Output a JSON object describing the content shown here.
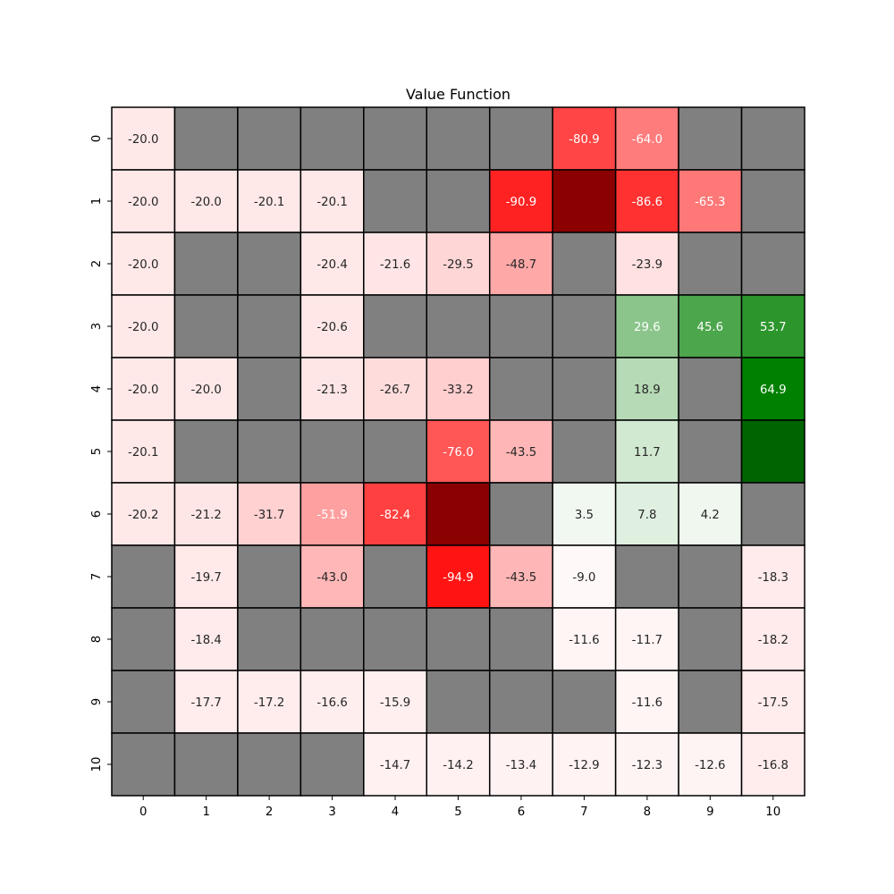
{
  "chart_data": {
    "type": "heatmap",
    "title": "Value Function",
    "xlabel": "",
    "ylabel": "",
    "x_tick_labels": [
      "0",
      "1",
      "2",
      "3",
      "4",
      "5",
      "6",
      "7",
      "8",
      "9",
      "10"
    ],
    "y_tick_labels": [
      "0",
      "1",
      "2",
      "3",
      "4",
      "5",
      "6",
      "7",
      "8",
      "9",
      "10"
    ],
    "grid": true,
    "colors": {
      "wall": "#808080",
      "goal": "#006400",
      "pit": "#8b0000",
      "cell_border": "#000000"
    },
    "cell_types": [
      [
        "v",
        "w",
        "w",
        "w",
        "w",
        "w",
        "w",
        "v",
        "v",
        "w",
        "w"
      ],
      [
        "v",
        "v",
        "v",
        "v",
        "w",
        "w",
        "v",
        "pit",
        "v",
        "v",
        "w"
      ],
      [
        "v",
        "w",
        "w",
        "v",
        "v",
        "v",
        "v",
        "w",
        "v",
        "w",
        "w"
      ],
      [
        "v",
        "w",
        "w",
        "v",
        "w",
        "w",
        "w",
        "w",
        "v",
        "v",
        "v"
      ],
      [
        "v",
        "v",
        "w",
        "v",
        "v",
        "v",
        "w",
        "w",
        "v",
        "w",
        "v"
      ],
      [
        "v",
        "w",
        "w",
        "w",
        "w",
        "v",
        "v",
        "w",
        "v",
        "w",
        "goal"
      ],
      [
        "v",
        "v",
        "v",
        "v",
        "v",
        "pit",
        "w",
        "v",
        "v",
        "v",
        "w"
      ],
      [
        "w",
        "v",
        "w",
        "v",
        "w",
        "v",
        "v",
        "v",
        "w",
        "w",
        "v"
      ],
      [
        "w",
        "v",
        "w",
        "w",
        "w",
        "w",
        "w",
        "v",
        "v",
        "w",
        "v"
      ],
      [
        "w",
        "v",
        "v",
        "v",
        "v",
        "w",
        "w",
        "w",
        "v",
        "w",
        "v"
      ],
      [
        "w",
        "w",
        "w",
        "w",
        "v",
        "v",
        "v",
        "v",
        "v",
        "v",
        "v"
      ]
    ],
    "values": [
      [
        -20.0,
        null,
        null,
        null,
        null,
        null,
        null,
        -80.9,
        -64.0,
        null,
        null
      ],
      [
        -20.0,
        -20.0,
        -20.1,
        -20.1,
        null,
        null,
        -90.9,
        null,
        -86.6,
        -65.3,
        null
      ],
      [
        -20.0,
        null,
        null,
        -20.4,
        -21.6,
        -29.5,
        -48.7,
        null,
        -23.9,
        null,
        null
      ],
      [
        -20.0,
        null,
        null,
        -20.6,
        null,
        null,
        null,
        null,
        29.6,
        45.6,
        53.7
      ],
      [
        -20.0,
        -20.0,
        null,
        -21.3,
        -26.7,
        -33.2,
        null,
        null,
        18.9,
        null,
        64.9
      ],
      [
        -20.1,
        null,
        null,
        null,
        null,
        -76.0,
        -43.5,
        null,
        11.7,
        null,
        null
      ],
      [
        -20.2,
        -21.2,
        -31.7,
        -51.9,
        -82.4,
        null,
        null,
        3.5,
        7.8,
        4.2,
        null
      ],
      [
        null,
        -19.7,
        null,
        -43.0,
        null,
        -94.9,
        -43.5,
        -9.0,
        null,
        null,
        -18.3
      ],
      [
        null,
        -18.4,
        null,
        null,
        null,
        null,
        null,
        -11.6,
        -11.7,
        null,
        -18.2
      ],
      [
        null,
        -17.7,
        -17.2,
        -16.6,
        -15.9,
        null,
        null,
        null,
        -11.6,
        null,
        -17.5
      ],
      [
        null,
        null,
        null,
        null,
        -14.7,
        -14.2,
        -13.4,
        -12.9,
        -12.3,
        -12.6,
        -16.8
      ]
    ],
    "value_labels": [
      [
        "-20.0",
        "",
        "",
        "",
        "",
        "",
        "",
        "-80.9",
        "-64.0",
        "",
        ""
      ],
      [
        "-20.0",
        "-20.0",
        "-20.1",
        "-20.1",
        "",
        "",
        "-90.9",
        "",
        "-86.6",
        "-65.3",
        ""
      ],
      [
        "-20.0",
        "",
        "",
        "-20.4",
        "-21.6",
        "-29.5",
        "-48.7",
        "",
        "-23.9",
        "",
        ""
      ],
      [
        "-20.0",
        "",
        "",
        "-20.6",
        "",
        "",
        "",
        "",
        "29.6",
        "45.6",
        "53.7"
      ],
      [
        "-20.0",
        "-20.0",
        "",
        "-21.3",
        "-26.7",
        "-33.2",
        "",
        "",
        "18.9",
        "",
        "64.9"
      ],
      [
        "-20.1",
        "",
        "",
        "",
        "",
        "-76.0",
        "-43.5",
        "",
        "11.7",
        "",
        ""
      ],
      [
        "-20.2",
        "-21.2",
        "-31.7",
        "-51.9",
        "-82.4",
        "",
        "",
        "3.5",
        "7.8",
        "4.2",
        ""
      ],
      [
        "",
        "-19.7",
        "",
        "-43.0",
        "",
        "-94.9",
        "-43.5",
        "-9.0",
        "",
        "",
        "-18.3"
      ],
      [
        "",
        "-18.4",
        "",
        "",
        "",
        "",
        "",
        "-11.6",
        "-11.7",
        "",
        "-18.2"
      ],
      [
        "",
        "-17.7",
        "-17.2",
        "-16.6",
        "-15.9",
        "",
        "",
        "",
        "-11.6",
        "",
        "-17.5"
      ],
      [
        "",
        "",
        "",
        "",
        "-14.7",
        "-14.2",
        "-13.4",
        "-12.9",
        "-12.3",
        "-12.6",
        "-16.8"
      ]
    ]
  }
}
